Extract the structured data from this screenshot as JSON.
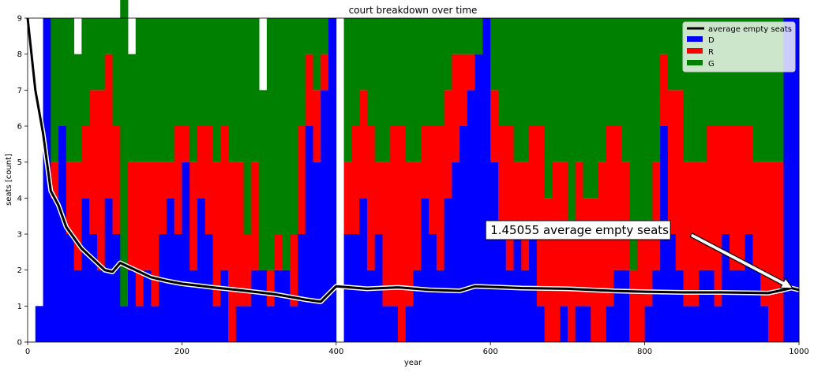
{
  "chart_data": {
    "type": "area",
    "title": "court breakdown over time",
    "xlabel": "year",
    "ylabel": "seats [count]",
    "xlim": [
      0,
      1000
    ],
    "ylim": [
      0,
      9
    ],
    "xticks": [
      "0",
      "200",
      "400",
      "600",
      "800",
      "1000"
    ],
    "yticks": [
      "0",
      "1",
      "2",
      "3",
      "4",
      "5",
      "6",
      "7",
      "8",
      "9"
    ],
    "legend_position": "top-right",
    "legend": [
      "average empty seats",
      "D",
      "R",
      "G"
    ],
    "colors": {
      "D": "#0000ff",
      "R": "#ff0000",
      "G": "#008000",
      "avg": "#000000"
    },
    "x_breakpoints": [
      0,
      10,
      20,
      30,
      40,
      50,
      60,
      70,
      80,
      90,
      100,
      110,
      120,
      130,
      140,
      150,
      160,
      170,
      180,
      190,
      200,
      210,
      220,
      230,
      240,
      250,
      260,
      270,
      280,
      290,
      300,
      310,
      320,
      330,
      340,
      350,
      360,
      370,
      380,
      390,
      400,
      410,
      420,
      430,
      440,
      450,
      460,
      470,
      480,
      490,
      500,
      510,
      520,
      530,
      540,
      550,
      560,
      570,
      580,
      590,
      600,
      610,
      620,
      630,
      640,
      650,
      660,
      670,
      680,
      690,
      700,
      710,
      720,
      730,
      740,
      750,
      760,
      770,
      780,
      790,
      800,
      810,
      820,
      830,
      840,
      850,
      860,
      870,
      880,
      890,
      900,
      910,
      920,
      930,
      940,
      950,
      960,
      970,
      980,
      990,
      1000
    ],
    "series": [
      {
        "name": "D",
        "values": [
          0,
          1,
          9,
          4,
          6,
          3,
          2,
          4,
          3,
          2,
          4,
          3,
          1,
          2,
          1,
          2,
          1,
          3,
          4,
          3,
          5,
          2,
          4,
          3,
          1,
          2,
          0,
          1,
          1,
          2,
          2,
          1,
          2,
          2,
          1,
          3,
          6,
          5,
          7,
          9,
          0,
          3,
          3,
          4,
          2,
          3,
          1,
          1,
          0,
          1,
          2,
          4,
          3,
          2,
          4,
          5,
          6,
          7,
          8,
          9,
          5,
          3,
          2,
          3,
          2,
          3,
          1,
          0,
          0,
          1,
          0,
          1,
          1,
          0,
          0,
          1,
          2,
          2,
          0,
          0,
          1,
          2,
          6,
          3,
          2,
          1,
          1,
          2,
          2,
          1,
          3,
          2,
          2,
          3,
          2,
          1,
          0,
          0,
          9,
          9,
          9
        ]
      },
      {
        "name": "R",
        "values": [
          0,
          0,
          0,
          1,
          0,
          2,
          3,
          2,
          4,
          5,
          4,
          3,
          0,
          3,
          4,
          3,
          4,
          2,
          1,
          3,
          1,
          3,
          2,
          3,
          4,
          4,
          5,
          4,
          2,
          3,
          0,
          1,
          1,
          0,
          2,
          3,
          2,
          2,
          1,
          0,
          0,
          2,
          3,
          3,
          4,
          2,
          4,
          5,
          6,
          4,
          3,
          2,
          3,
          4,
          3,
          3,
          2,
          1,
          0,
          0,
          2,
          3,
          4,
          2,
          3,
          3,
          5,
          4,
          5,
          4,
          3,
          4,
          3,
          4,
          5,
          5,
          4,
          3,
          2,
          3,
          2,
          3,
          2,
          4,
          5,
          4,
          4,
          3,
          4,
          5,
          3,
          4,
          4,
          3,
          3,
          4,
          5,
          5,
          0,
          0,
          0
        ]
      },
      {
        "name": "G",
        "values": [
          0,
          0,
          0,
          4,
          3,
          4,
          3,
          3,
          2,
          2,
          1,
          3,
          9,
          3,
          4,
          4,
          4,
          4,
          4,
          3,
          3,
          4,
          3,
          3,
          4,
          3,
          4,
          4,
          6,
          4,
          5,
          7,
          6,
          7,
          6,
          3,
          1,
          2,
          1,
          0,
          0,
          4,
          3,
          2,
          3,
          4,
          4,
          3,
          3,
          4,
          4,
          3,
          3,
          3,
          2,
          1,
          1,
          1,
          1,
          0,
          2,
          3,
          3,
          4,
          4,
          3,
          3,
          5,
          4,
          4,
          6,
          4,
          5,
          5,
          4,
          3,
          3,
          4,
          7,
          6,
          6,
          4,
          1,
          2,
          2,
          4,
          4,
          4,
          3,
          3,
          3,
          3,
          3,
          3,
          4,
          4,
          4,
          4,
          0,
          0,
          0
        ]
      },
      {
        "name": "average empty seats",
        "x": [
          0,
          10,
          20,
          30,
          40,
          50,
          60,
          70,
          80,
          90,
          100,
          110,
          120,
          140,
          160,
          180,
          200,
          240,
          280,
          320,
          360,
          380,
          400,
          440,
          480,
          520,
          560,
          580,
          640,
          700,
          760,
          800,
          850,
          900,
          960,
          980,
          990,
          1000
        ],
        "values": [
          9,
          7.0,
          5.8,
          4.2,
          3.8,
          3.2,
          2.9,
          2.6,
          2.4,
          2.2,
          2.0,
          1.95,
          2.2,
          2.0,
          1.8,
          1.7,
          1.62,
          1.52,
          1.43,
          1.33,
          1.18,
          1.12,
          1.55,
          1.48,
          1.52,
          1.45,
          1.42,
          1.55,
          1.5,
          1.48,
          1.42,
          1.4,
          1.38,
          1.38,
          1.36,
          1.45,
          1.5,
          1.45
        ]
      }
    ],
    "annotations": [
      {
        "text": "1.45055 average empty seats",
        "x": 600,
        "y": 3.0,
        "arrow_to": [
          1000,
          1.45
        ]
      }
    ]
  }
}
